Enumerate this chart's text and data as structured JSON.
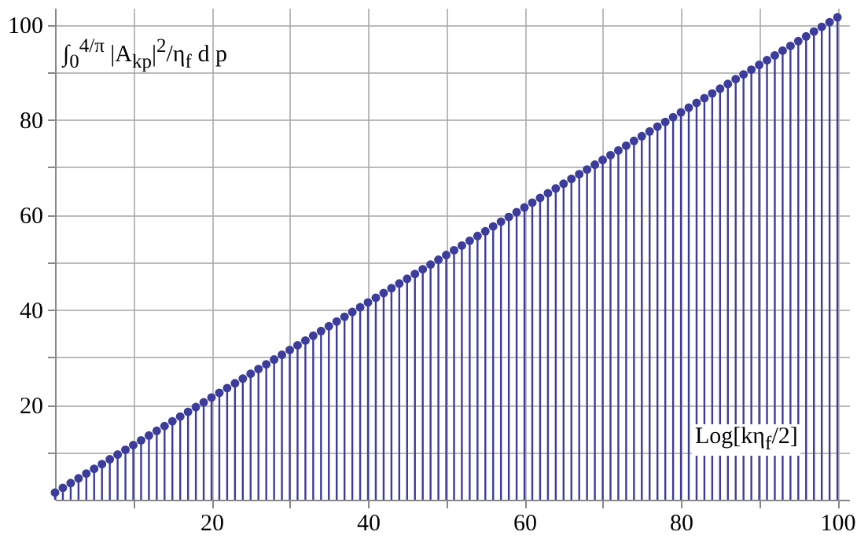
{
  "chart_data": {
    "type": "lollipop",
    "xlabel": "Log[kη$_{f}$/2]",
    "ylabel": "∫$_{0}$$^{4/π}$ |A$_{kp}$|$^{2}$/η$_{f}$ d p",
    "x": [
      0,
      1,
      2,
      3,
      4,
      5,
      6,
      7,
      8,
      9,
      10,
      11,
      12,
      13,
      14,
      15,
      16,
      17,
      18,
      19,
      20,
      21,
      22,
      23,
      24,
      25,
      26,
      27,
      28,
      29,
      30,
      31,
      32,
      33,
      34,
      35,
      36,
      37,
      38,
      39,
      40,
      41,
      42,
      43,
      44,
      45,
      46,
      47,
      48,
      49,
      50,
      51,
      52,
      53,
      54,
      55,
      56,
      57,
      58,
      59,
      60,
      61,
      62,
      63,
      64,
      65,
      66,
      67,
      68,
      69,
      70,
      71,
      72,
      73,
      74,
      75,
      76,
      77,
      78,
      79,
      80,
      81,
      82,
      83,
      84,
      85,
      86,
      87,
      88,
      89,
      90,
      91,
      92,
      93,
      94,
      95,
      96,
      97,
      98,
      99,
      100
    ],
    "values": [
      1.5,
      2.5,
      3.5,
      4.5,
      5.5,
      6.5,
      7.5,
      8.5,
      9.5,
      10.5,
      11.5,
      12.5,
      13.5,
      14.5,
      15.5,
      16.5,
      17.5,
      18.5,
      19.5,
      20.5,
      21.5,
      22.5,
      23.5,
      24.5,
      25.5,
      26.5,
      27.5,
      28.5,
      29.5,
      30.5,
      31.5,
      32.5,
      33.5,
      34.5,
      35.5,
      36.5,
      37.5,
      38.5,
      39.5,
      40.5,
      41.5,
      42.5,
      43.5,
      44.5,
      45.5,
      46.5,
      47.5,
      48.5,
      49.5,
      50.5,
      51.5,
      52.5,
      53.5,
      54.5,
      55.5,
      56.5,
      57.5,
      58.5,
      59.5,
      60.5,
      61.5,
      62.5,
      63.5,
      64.5,
      65.5,
      66.5,
      67.5,
      68.5,
      69.5,
      70.5,
      71.5,
      72.5,
      73.5,
      74.5,
      75.5,
      76.5,
      77.5,
      78.5,
      79.5,
      80.5,
      81.5,
      82.5,
      83.5,
      84.5,
      85.5,
      86.5,
      87.5,
      88.5,
      89.5,
      90.5,
      91.5,
      92.5,
      93.5,
      94.5,
      95.5,
      96.5,
      97.5,
      98.5,
      99.5,
      100.5,
      101.5
    ],
    "color": "#3c3c9c",
    "marker": "circle",
    "xlim": [
      0,
      101.5
    ],
    "ylim": [
      0,
      103.5
    ],
    "xticks": [
      {
        "value": 10,
        "label": null
      },
      20,
      {
        "value": 30,
        "label": null
      },
      40,
      {
        "value": 50,
        "label": null
      },
      60,
      {
        "value": 70,
        "label": null
      },
      80,
      {
        "value": 90,
        "label": null
      },
      100
    ],
    "yticks": [
      {
        "value": 10,
        "label": null
      },
      20,
      {
        "value": 30,
        "label": null
      },
      40,
      {
        "value": 50,
        "label": null
      },
      60,
      {
        "value": 70,
        "label": null
      },
      80,
      {
        "value": 90,
        "label": null
      },
      100
    ],
    "grid": true
  }
}
